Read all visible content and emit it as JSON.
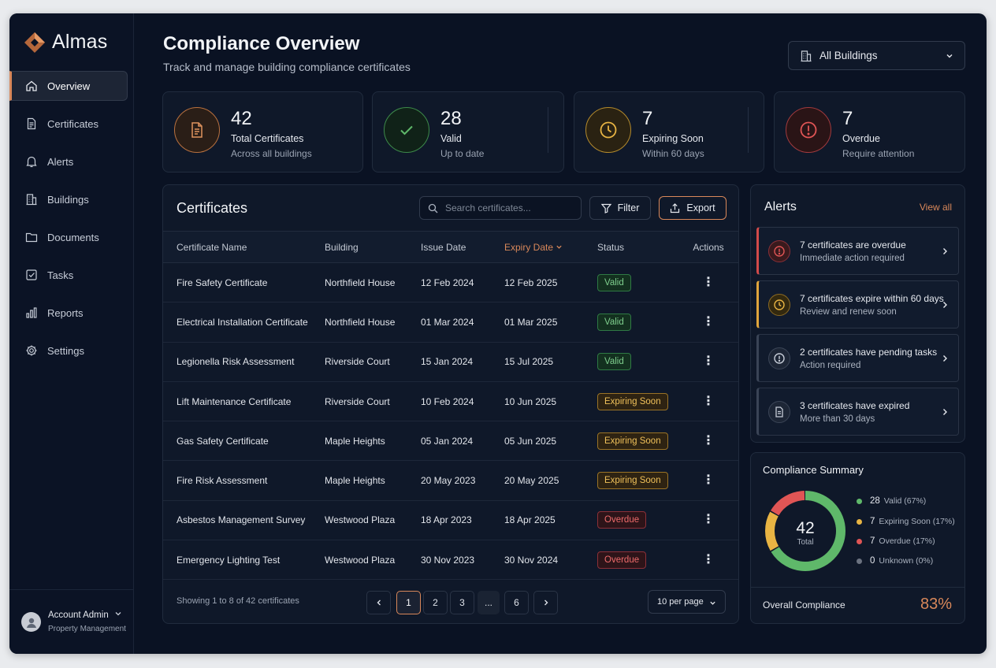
{
  "app": {
    "name": "Almas"
  },
  "colors": {
    "accent": "#d9885a",
    "valid": "#5fb86a",
    "expiring": "#e8b443",
    "overdue": "#e05555",
    "unknown": "#6b7280",
    "background": "#0a1223"
  },
  "sidebar": {
    "items": [
      {
        "label": "Overview",
        "icon": "home-icon",
        "active": true
      },
      {
        "label": "Certificates",
        "icon": "certificate-icon"
      },
      {
        "label": "Alerts",
        "icon": "bell-icon"
      },
      {
        "label": "Buildings",
        "icon": "building-icon"
      },
      {
        "label": "Documents",
        "icon": "folder-icon"
      },
      {
        "label": "Tasks",
        "icon": "checkbox-icon"
      },
      {
        "label": "Reports",
        "icon": "bar-chart-icon"
      },
      {
        "label": "Settings",
        "icon": "gear-icon"
      }
    ],
    "account": {
      "name": "Account Admin",
      "role": "Property Management"
    }
  },
  "header": {
    "title": "Compliance Overview",
    "subtitle": "Track and manage building compliance certificates",
    "building_select": "All Buildings"
  },
  "stats": [
    {
      "value": "42",
      "label": "Total Certificates",
      "sub": "Across all buildings",
      "icon": "document-icon"
    },
    {
      "value": "28",
      "label": "Valid",
      "sub": "Up to date",
      "icon": "check-icon"
    },
    {
      "value": "7",
      "label": "Expiring Soon",
      "sub": "Within 60 days",
      "icon": "clock-icon"
    },
    {
      "value": "7",
      "label": "Overdue",
      "sub": "Require attention",
      "icon": "alert-icon"
    }
  ],
  "certificates": {
    "title": "Certificates",
    "search_placeholder": "Search certificates...",
    "filter_label": "Filter",
    "export_label": "Export",
    "columns": [
      "Certificate Name",
      "Building",
      "Issue Date",
      "Expiry Date",
      "Status",
      "Actions"
    ],
    "rows": [
      {
        "name": "Fire Safety Certificate",
        "building": "Northfield House",
        "issue": "12 Feb 2024",
        "expiry": "12 Feb 2025",
        "status": "Valid"
      },
      {
        "name": "Electrical Installation Certificate",
        "building": "Northfield House",
        "issue": "01 Mar 2024",
        "expiry": "01 Mar 2025",
        "status": "Valid"
      },
      {
        "name": "Legionella Risk Assessment",
        "building": "Riverside Court",
        "issue": "15 Jan 2024",
        "expiry": "15 Jul 2025",
        "status": "Valid"
      },
      {
        "name": "Lift Maintenance Certificate",
        "building": "Riverside Court",
        "issue": "10 Feb 2024",
        "expiry": "10 Jun 2025",
        "status": "Expiring Soon"
      },
      {
        "name": "Gas Safety Certificate",
        "building": "Maple Heights",
        "issue": "05 Jan 2024",
        "expiry": "05 Jun 2025",
        "status": "Expiring Soon"
      },
      {
        "name": "Fire Risk Assessment",
        "building": "Maple Heights",
        "issue": "20 May 2023",
        "expiry": "20 May 2025",
        "status": "Expiring Soon"
      },
      {
        "name": "Asbestos Management Survey",
        "building": "Westwood Plaza",
        "issue": "18 Apr 2023",
        "expiry": "18 Apr 2025",
        "status": "Overdue"
      },
      {
        "name": "Emergency Lighting Test",
        "building": "Westwood Plaza",
        "issue": "30 Nov 2023",
        "expiry": "30 Nov 2024",
        "status": "Overdue"
      }
    ],
    "showing": "Showing 1 to 8 of 42 certificates",
    "pages": [
      "1",
      "2",
      "3",
      "...",
      "6"
    ],
    "current_page": "1",
    "per_page": "10 per page"
  },
  "alerts": {
    "title": "Alerts",
    "view_all": "View all",
    "items": [
      {
        "title": "7 certificates are overdue",
        "sub": "Immediate action required",
        "icon": "alert-icon"
      },
      {
        "title": "7 certificates expire within 60 days",
        "sub": "Review and renew soon",
        "icon": "clock-icon"
      },
      {
        "title": "2 certificates have pending tasks",
        "sub": "Action required",
        "icon": "info-icon"
      },
      {
        "title": "3 certificates have expired",
        "sub": "More than 30 days",
        "icon": "document-icon"
      }
    ]
  },
  "summary": {
    "title": "Compliance Summary",
    "total": "42",
    "total_label": "Total",
    "legend": [
      {
        "count": "28",
        "label": "Valid (67%)"
      },
      {
        "count": "7",
        "label": "Expiring Soon (17%)"
      },
      {
        "count": "7",
        "label": "Overdue (17%)"
      },
      {
        "count": "0",
        "label": "Unknown (0%)"
      }
    ],
    "overall_label": "Overall Compliance",
    "overall_value": "83%"
  },
  "chart_data": {
    "type": "pie",
    "categories": [
      "Valid",
      "Expiring Soon",
      "Overdue",
      "Unknown"
    ],
    "values": [
      28,
      7,
      7,
      0
    ]
  }
}
